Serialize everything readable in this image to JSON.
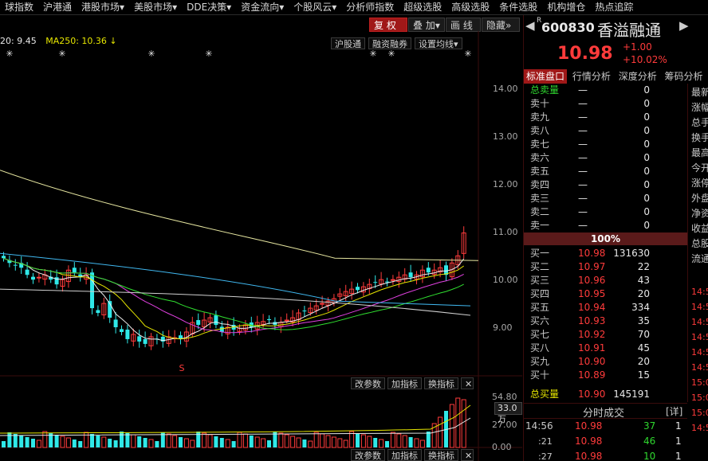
{
  "topnav": {
    "items": [
      "球指数",
      "沪港通",
      "港股市场▾",
      "美股市场▾",
      "DDE决策▾",
      "资金流向▾",
      "个股风云▾",
      "分析师指数",
      "超级选股",
      "高级选股",
      "条件选股",
      "机构增仓",
      "热点追踪"
    ]
  },
  "chart": {
    "ma_text_1": "20: 9.45",
    "ma_text_2": "MA250: 10.36 ↓",
    "buttons": {
      "fuquan": "复 权",
      "diejia": "叠 加▾",
      "huaxian": "画 线",
      "yincang": "隐藏»"
    },
    "labels": {
      "hugangtong": "沪股通",
      "rongzi": "融资融券",
      "shezhi": "设置均线▾"
    },
    "price_axis": [
      "14.00",
      "13.00",
      "12.00",
      "11.00",
      "10.00",
      "9.00"
    ],
    "signal_mark": "S",
    "star": "✳",
    "sub_buttons": {
      "gaicanshu": "改参数",
      "jiazhibiao": "加指标",
      "huanzhibiao": "换指标",
      "close": "✕"
    },
    "vol_axis": [
      "54.80",
      "27.00",
      "0.00"
    ],
    "vol_badge": "33.0万"
  },
  "stock": {
    "r_mark": "R",
    "code": "600830",
    "name": "香溢融通",
    "price": "10.98",
    "change": "+1.00",
    "change_pct": "+10.02%"
  },
  "tabs": [
    "标准盘口",
    "行情分析",
    "深度分析",
    "筹码分析"
  ],
  "orderbook": {
    "sell_total_label": "总卖量",
    "sell_total_dash": "—",
    "sell_total_vol": "0",
    "sells": [
      {
        "label": "卖十",
        "price": "—",
        "vol": "0"
      },
      {
        "label": "卖九",
        "price": "—",
        "vol": "0"
      },
      {
        "label": "卖八",
        "price": "—",
        "vol": "0"
      },
      {
        "label": "卖七",
        "price": "—",
        "vol": "0"
      },
      {
        "label": "卖六",
        "price": "—",
        "vol": "0"
      },
      {
        "label": "卖五",
        "price": "—",
        "vol": "0"
      },
      {
        "label": "卖四",
        "price": "—",
        "vol": "0"
      },
      {
        "label": "卖三",
        "price": "—",
        "vol": "0"
      },
      {
        "label": "卖二",
        "price": "—",
        "vol": "0"
      },
      {
        "label": "卖一",
        "price": "—",
        "vol": "0"
      }
    ],
    "ratio": "100%",
    "buys": [
      {
        "label": "买一",
        "price": "10.98",
        "vol": "131630"
      },
      {
        "label": "买二",
        "price": "10.97",
        "vol": "22"
      },
      {
        "label": "买三",
        "price": "10.96",
        "vol": "43"
      },
      {
        "label": "买四",
        "price": "10.95",
        "vol": "20"
      },
      {
        "label": "买五",
        "price": "10.94",
        "vol": "334"
      },
      {
        "label": "买六",
        "price": "10.93",
        "vol": "35"
      },
      {
        "label": "买七",
        "price": "10.92",
        "vol": "70"
      },
      {
        "label": "买八",
        "price": "10.91",
        "vol": "45"
      },
      {
        "label": "买九",
        "price": "10.90",
        "vol": "20"
      },
      {
        "label": "买十",
        "price": "10.89",
        "vol": "15"
      }
    ],
    "buy_total_label": "总买量",
    "buy_total_price": "10.90",
    "buy_total_vol": "145191"
  },
  "ticks": {
    "title": "分时成交",
    "detail": "[详]",
    "rows": [
      {
        "time": "14:56",
        "price": "10.98",
        "vol": "37",
        "n": "1"
      },
      {
        "time": ":21",
        "price": "10.98",
        "vol": "46",
        "n": "1"
      },
      {
        "time": ":27",
        "price": "10.98",
        "vol": "10",
        "n": "1"
      }
    ]
  },
  "side_labels": [
    "最新",
    "涨幅",
    "总手",
    "换手",
    "最高",
    "今开",
    "涨停",
    "外盘",
    "净资",
    "收益",
    "总股",
    "流通"
  ],
  "side_times": [
    "14:5",
    "14:5",
    "14:5",
    "14:5",
    "14:5",
    "14:5",
    "15:0",
    "15:0",
    "15:0",
    "14:5"
  ]
}
